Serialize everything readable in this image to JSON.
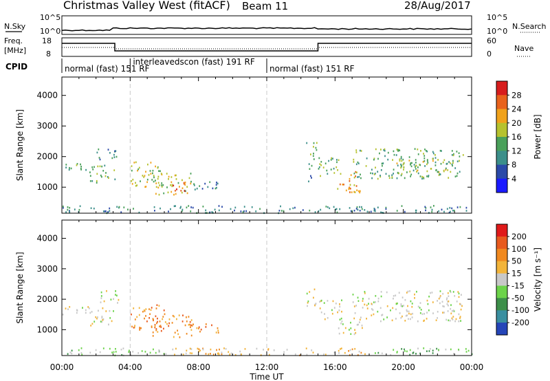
{
  "header": {
    "title": "Christmas Valley West (fitACF)",
    "beam": "Beam 11",
    "date": "28/Aug/2017"
  },
  "panels": {
    "nsky_label": "N.Sky",
    "nsearch_label": "N.Search",
    "freq_label_1": "Freq.",
    "freq_label_2": "[MHz]",
    "nave_label": "Nave",
    "cpid_label": "CPID",
    "nsky_ticks": [
      "10^5",
      "10^0"
    ],
    "nsearch_ticks": [
      "10^5",
      "10^0"
    ],
    "freq_ticks": [
      "18",
      "8"
    ],
    "nave_ticks": [
      "60",
      "0"
    ]
  },
  "cpid": [
    {
      "start_h": 0,
      "end_h": 4,
      "label": "normal (fast)  151 RF"
    },
    {
      "start_h": 4,
      "end_h": 12,
      "label": "interleavedscon (fast)  191 RF"
    },
    {
      "start_h": 12,
      "end_h": 24,
      "label": "normal (fast)  151 RF"
    }
  ],
  "chart_data": [
    {
      "type": "heatmap",
      "name": "power",
      "ylabel": "Slant Range [km]",
      "xlabel": "Time UT",
      "xlim": [
        0,
        24
      ],
      "ylim": [
        150,
        4600
      ],
      "x_ticks": [
        "00:00",
        "04:00",
        "08:00",
        "12:00",
        "16:00",
        "20:00",
        "00:00"
      ],
      "y_ticks": [
        1000,
        2000,
        3000,
        4000
      ],
      "colorbar": {
        "label": "Power [dB]",
        "ticks": [
          4,
          8,
          12,
          16,
          20,
          24,
          28
        ],
        "colors": [
          "#1a1aff",
          "#2b4aa8",
          "#3c8f8a",
          "#4aa05a",
          "#b6c22e",
          "#f0a21b",
          "#e8621c",
          "#d71d1d"
        ]
      },
      "regions": [
        {
          "t0": 0.0,
          "t1": 1.6,
          "r0": 1500,
          "r1": 1800,
          "level": 3
        },
        {
          "t0": 1.6,
          "t1": 3.1,
          "r0": 1150,
          "r1": 1750,
          "level": 3
        },
        {
          "t0": 2.0,
          "t1": 3.3,
          "r0": 1900,
          "r1": 2300,
          "level": 2
        },
        {
          "t0": 4.0,
          "t1": 6.0,
          "r0": 1000,
          "r1": 1850,
          "level": 4
        },
        {
          "t0": 5.3,
          "t1": 7.6,
          "r0": 780,
          "r1": 1500,
          "level": 4
        },
        {
          "t0": 6.4,
          "t1": 7.3,
          "r0": 850,
          "r1": 1200,
          "level": 6
        },
        {
          "t0": 7.5,
          "t1": 9.2,
          "r0": 880,
          "r1": 1250,
          "level": 2
        },
        {
          "t0": 14.3,
          "t1": 14.9,
          "r0": 1800,
          "r1": 2500,
          "level": 3
        },
        {
          "t0": 14.4,
          "t1": 14.7,
          "r0": 1000,
          "r1": 1800,
          "level": 2
        },
        {
          "t0": 15.0,
          "t1": 16.4,
          "r0": 1300,
          "r1": 2000,
          "level": 3
        },
        {
          "t0": 16.0,
          "t1": 17.6,
          "r0": 850,
          "r1": 1300,
          "level": 5
        },
        {
          "t0": 16.8,
          "t1": 17.3,
          "r0": 950,
          "r1": 1600,
          "level": 6
        },
        {
          "t0": 17.0,
          "t1": 23.5,
          "r0": 1300,
          "r1": 2300,
          "level": 3
        },
        {
          "t0": 19.5,
          "t1": 22.5,
          "r0": 1500,
          "r1": 1900,
          "level": 4
        },
        {
          "t0": 0.0,
          "t1": 24.0,
          "r0": 180,
          "r1": 420,
          "level": 2
        }
      ]
    },
    {
      "type": "heatmap",
      "name": "velocity",
      "ylabel": "Slant Range [km]",
      "xlabel": "Time UT",
      "xlim": [
        0,
        24
      ],
      "ylim": [
        150,
        4600
      ],
      "x_ticks": [
        "00:00",
        "04:00",
        "08:00",
        "12:00",
        "16:00",
        "20:00",
        "00:00"
      ],
      "y_ticks": [
        1000,
        2000,
        3000,
        4000
      ],
      "colorbar": {
        "label": "Velocity [m s⁻¹]",
        "ticks": [
          "200",
          "100",
          "50",
          "15",
          "-15",
          "-50",
          "-100",
          "-200"
        ],
        "colors": [
          "#2545b8",
          "#3a8fa0",
          "#3d8f4a",
          "#6cd34a",
          "#c8c8c8",
          "#f2b43a",
          "#f0891f",
          "#e85a1e",
          "#e01a1a"
        ]
      },
      "regions": [
        {
          "t0": 0.0,
          "t1": 1.6,
          "r0": 1500,
          "r1": 1800,
          "level": 4
        },
        {
          "t0": 1.6,
          "t1": 3.1,
          "r0": 1150,
          "r1": 1750,
          "level": 4
        },
        {
          "t0": 2.0,
          "t1": 3.3,
          "r0": 1900,
          "r1": 2300,
          "level": 4
        },
        {
          "t0": 4.0,
          "t1": 6.0,
          "r0": 1000,
          "r1": 1850,
          "level": 6
        },
        {
          "t0": 5.3,
          "t1": 7.6,
          "r0": 780,
          "r1": 1500,
          "level": 6
        },
        {
          "t0": 7.5,
          "t1": 9.2,
          "r0": 880,
          "r1": 1250,
          "level": 6
        },
        {
          "t0": 14.3,
          "t1": 14.9,
          "r0": 1800,
          "r1": 2500,
          "level": 4
        },
        {
          "t0": 15.0,
          "t1": 16.4,
          "r0": 1300,
          "r1": 2000,
          "level": 4
        },
        {
          "t0": 16.0,
          "t1": 17.6,
          "r0": 850,
          "r1": 1300,
          "level": 4
        },
        {
          "t0": 17.0,
          "t1": 23.5,
          "r0": 1300,
          "r1": 2300,
          "level": 4
        },
        {
          "t0": 0.0,
          "t1": 6.0,
          "r0": 180,
          "r1": 420,
          "level": 3
        },
        {
          "t0": 6.0,
          "t1": 18.0,
          "r0": 180,
          "r1": 420,
          "level": 5
        },
        {
          "t0": 18.0,
          "t1": 24.0,
          "r0": 180,
          "r1": 420,
          "level": 3
        }
      ]
    }
  ]
}
